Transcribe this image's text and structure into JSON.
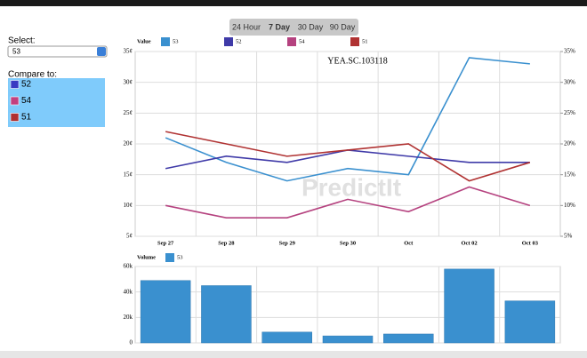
{
  "tabs": [
    "24 Hour",
    "7 Day",
    "30 Day",
    "90 Day"
  ],
  "active_tab": "7 Day",
  "select": {
    "label": "Select:",
    "value": "53"
  },
  "compare": {
    "label": "Compare to:",
    "options": [
      {
        "name": "52",
        "color": "#3a3ac2"
      },
      {
        "name": "54",
        "color": "#c2407f"
      },
      {
        "name": "51",
        "color": "#b03030"
      }
    ]
  },
  "chart_data": [
    {
      "type": "line",
      "title": "YEA.SC.103118",
      "legend_title": "Value",
      "watermark": "PredictIt",
      "categories": [
        "Sep 27",
        "Sep 28",
        "Sep 29",
        "Sep 30",
        "Oct",
        "Oct 02",
        "Oct 03"
      ],
      "series": [
        {
          "name": "53",
          "color": "#3a90cf",
          "values": [
            21,
            17,
            14,
            16,
            15,
            34,
            33
          ]
        },
        {
          "name": "52",
          "color": "#3f3aa8",
          "values": [
            16,
            18,
            17,
            19,
            18,
            17,
            17
          ]
        },
        {
          "name": "54",
          "color": "#b5427f",
          "values": [
            10,
            8,
            8,
            11,
            9,
            13,
            10
          ]
        },
        {
          "name": "51",
          "color": "#b03232",
          "values": [
            22,
            20,
            18,
            19,
            20,
            14,
            17
          ]
        }
      ],
      "ylim": [
        5,
        35
      ],
      "yticks": [
        {
          "value": 5,
          "label": "5¢"
        },
        {
          "value": 10,
          "label": "10¢"
        },
        {
          "value": 15,
          "label": "15¢"
        },
        {
          "value": 20,
          "label": "20¢"
        },
        {
          "value": 25,
          "label": "25¢"
        },
        {
          "value": 30,
          "label": "30¢"
        },
        {
          "value": 35,
          "label": "35¢"
        }
      ],
      "y2lim": [
        5,
        35
      ],
      "y2ticks": [
        {
          "value": 5,
          "label": "5%"
        },
        {
          "value": 10,
          "label": "10%"
        },
        {
          "value": 15,
          "label": "15%"
        },
        {
          "value": 20,
          "label": "20%"
        },
        {
          "value": 25,
          "label": "25%"
        },
        {
          "value": 30,
          "label": "30%"
        },
        {
          "value": 35,
          "label": "35%"
        }
      ],
      "grid": true
    },
    {
      "type": "bar",
      "legend_title": "Volume",
      "series": [
        {
          "name": "53",
          "color": "#3a90cf",
          "values": [
            49000,
            45000,
            8500,
            5500,
            7000,
            58000,
            33000
          ]
        }
      ],
      "ylim": [
        0,
        60000
      ],
      "yticks": [
        0,
        {
          "value": 20000,
          "label": "20k"
        },
        {
          "value": 40000,
          "label": "40k"
        },
        {
          "value": 60000,
          "label": "60k"
        }
      ],
      "grid": true
    }
  ]
}
